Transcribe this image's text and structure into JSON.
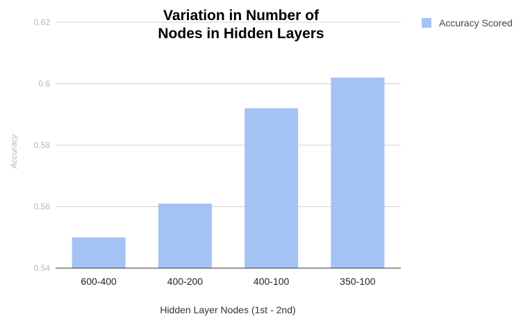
{
  "chart_data": {
    "type": "bar",
    "title": [
      "Variation in Number of",
      "Nodes in Hidden Layers"
    ],
    "xlabel": "Hidden Layer Nodes (1st - 2nd)",
    "ylabel": "Accuracy",
    "categories": [
      "600-400",
      "400-200",
      "400-100",
      "350-100"
    ],
    "series": [
      {
        "name": "Accuracy Scored",
        "values": [
          0.55,
          0.561,
          0.592,
          0.602
        ]
      }
    ],
    "ylim": [
      0.54,
      0.62
    ],
    "yticks": [
      "0.54",
      "0.56",
      "0.58",
      "0.6",
      "0.62"
    ],
    "grid": true,
    "legend_position": "top-right",
    "colors": {
      "bar": "#a4c2f4"
    }
  }
}
